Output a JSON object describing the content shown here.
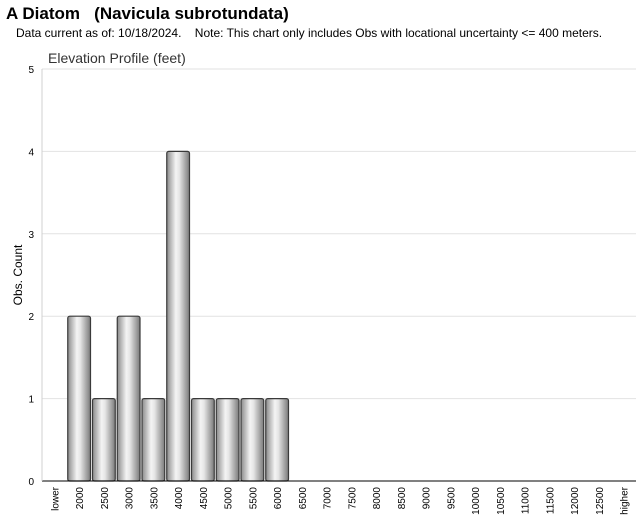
{
  "header": {
    "title": "A Diatom   (Navicula subrotundata)",
    "note": "Data current as of: 10/18/2024.    Note: This chart only includes Obs with locational uncertainty <= 400 meters."
  },
  "chart_data": {
    "type": "bar",
    "title": "Elevation Profile (feet)",
    "xlabel": "",
    "ylabel": "Obs. Count",
    "ylim": [
      0,
      5
    ],
    "yticks": [
      0,
      1,
      2,
      3,
      4,
      5
    ],
    "grid": true,
    "categories": [
      "lower",
      "2000",
      "2500",
      "3000",
      "3500",
      "4000",
      "4500",
      "5000",
      "5500",
      "6000",
      "6500",
      "7000",
      "7500",
      "8000",
      "8500",
      "9000",
      "9500",
      "10000",
      "10500",
      "11000",
      "11500",
      "12000",
      "12500",
      "higher"
    ],
    "values": [
      0,
      2,
      1,
      2,
      1,
      4,
      1,
      1,
      1,
      1,
      0,
      0,
      0,
      0,
      0,
      0,
      0,
      0,
      0,
      0,
      0,
      0,
      0,
      0
    ]
  }
}
